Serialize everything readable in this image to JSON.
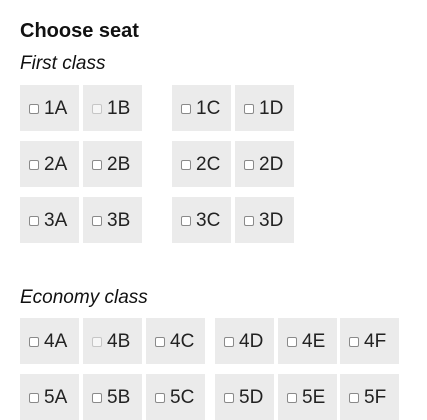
{
  "title": "Choose seat",
  "cabins": [
    {
      "label": "First class",
      "rows": [
        {
          "seats": [
            "1A",
            "1B",
            "1C",
            "1D"
          ]
        },
        {
          "seats": [
            "2A",
            "2B",
            "2C",
            "2D"
          ]
        },
        {
          "seats": [
            "3A",
            "3B",
            "3C",
            "3D"
          ]
        }
      ]
    },
    {
      "label": "Economy class",
      "rows": [
        {
          "seats": [
            "4A",
            "4B",
            "4C",
            "4D",
            "4E",
            "4F"
          ]
        },
        {
          "seats": [
            "5A",
            "5B",
            "5C",
            "5D",
            "5E",
            "5F"
          ]
        }
      ]
    }
  ]
}
